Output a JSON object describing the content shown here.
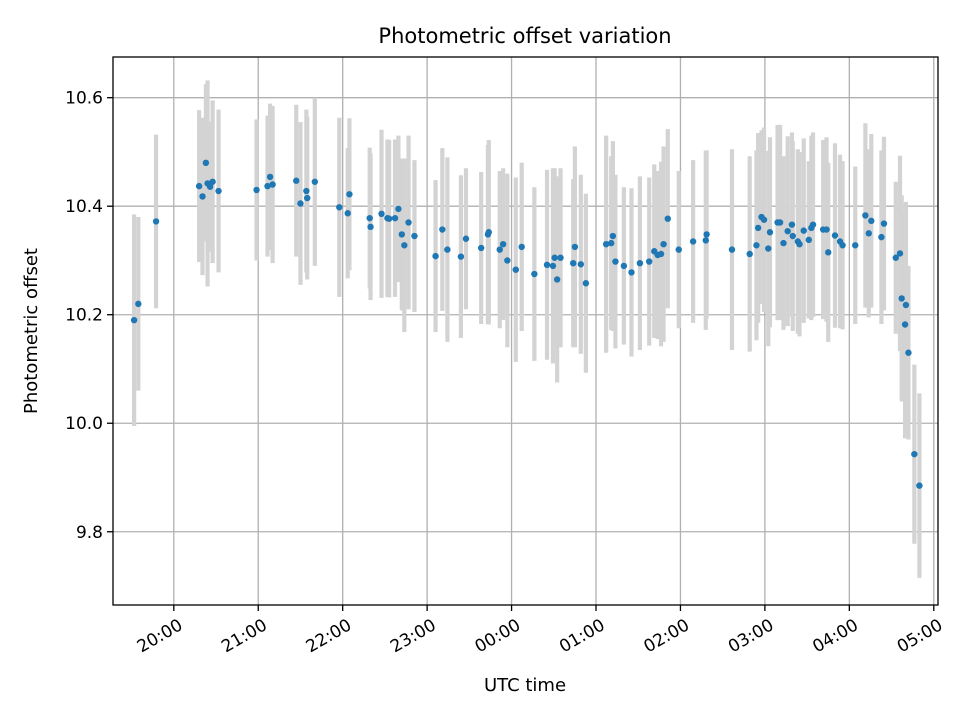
{
  "chart_data": {
    "type": "scatter",
    "title": "Photometric offset variation",
    "xlabel": "UTC time",
    "ylabel": "Photometric offset",
    "xlim": [
      -0.72,
      9.05
    ],
    "ylim": [
      9.665,
      10.675
    ],
    "grid": true,
    "x_ticks": [
      {
        "value": 0,
        "label": "20:00"
      },
      {
        "value": 1,
        "label": "21:00"
      },
      {
        "value": 2,
        "label": "22:00"
      },
      {
        "value": 3,
        "label": "23:00"
      },
      {
        "value": 4,
        "label": "00:00"
      },
      {
        "value": 5,
        "label": "01:00"
      },
      {
        "value": 6,
        "label": "02:00"
      },
      {
        "value": 7,
        "label": "03:00"
      },
      {
        "value": 8,
        "label": "04:00"
      },
      {
        "value": 9,
        "label": "05:00"
      }
    ],
    "y_ticks": [
      {
        "value": 9.8,
        "label": "9.8"
      },
      {
        "value": 10.0,
        "label": "10.0"
      },
      {
        "value": 10.2,
        "label": "10.2"
      },
      {
        "value": 10.4,
        "label": "10.4"
      },
      {
        "value": 10.6,
        "label": "10.6"
      }
    ],
    "series": [
      {
        "name": "photometric offset",
        "x_unit": "hours after 20:00 UTC",
        "color": "#1f77b4",
        "errorbar_color": "#d3d3d3",
        "points": [
          [
            -0.47,
            10.19,
            0.195
          ],
          [
            -0.42,
            10.22,
            0.16
          ],
          [
            -0.21,
            10.372,
            0.16
          ],
          [
            0.3,
            10.437,
            0.14
          ],
          [
            0.34,
            10.418,
            0.145
          ],
          [
            0.38,
            10.48,
            0.145
          ],
          [
            0.4,
            10.442,
            0.19
          ],
          [
            0.43,
            10.436,
            0.12
          ],
          [
            0.46,
            10.445,
            0.15
          ],
          [
            0.53,
            10.428,
            0.15
          ],
          [
            0.98,
            10.43,
            0.13
          ],
          [
            1.11,
            10.437,
            0.13
          ],
          [
            1.14,
            10.454,
            0.135
          ],
          [
            1.17,
            10.44,
            0.145
          ],
          [
            1.45,
            10.447,
            0.14
          ],
          [
            1.5,
            10.405,
            0.15
          ],
          [
            1.57,
            10.428,
            0.15
          ],
          [
            1.58,
            10.415,
            0.15
          ],
          [
            1.67,
            10.445,
            0.155
          ],
          [
            1.96,
            10.398,
            0.165
          ],
          [
            2.06,
            10.387,
            0.12
          ],
          [
            2.08,
            10.422,
            0.14
          ],
          [
            2.32,
            10.378,
            0.13
          ],
          [
            2.33,
            10.362,
            0.135
          ],
          [
            2.46,
            10.386,
            0.155
          ],
          [
            2.53,
            10.378,
            0.145
          ],
          [
            2.55,
            10.377,
            0.145
          ],
          [
            2.62,
            10.378,
            0.145
          ],
          [
            2.66,
            10.395,
            0.135
          ],
          [
            2.7,
            10.348,
            0.14
          ],
          [
            2.73,
            10.328,
            0.16
          ],
          [
            2.78,
            10.37,
            0.16
          ],
          [
            2.85,
            10.345,
            0.14
          ],
          [
            3.1,
            10.308,
            0.14
          ],
          [
            3.18,
            10.357,
            0.15
          ],
          [
            3.24,
            10.32,
            0.17
          ],
          [
            3.4,
            10.307,
            0.15
          ],
          [
            3.46,
            10.34,
            0.13
          ],
          [
            3.64,
            10.323,
            0.14
          ],
          [
            3.72,
            10.348,
            0.165
          ],
          [
            3.73,
            10.352,
            0.17
          ],
          [
            3.86,
            10.32,
            0.145
          ],
          [
            3.9,
            10.33,
            0.14
          ],
          [
            3.95,
            10.3,
            0.16
          ],
          [
            4.05,
            10.283,
            0.17
          ],
          [
            4.12,
            10.325,
            0.155
          ],
          [
            4.27,
            10.275,
            0.16
          ],
          [
            4.42,
            10.292,
            0.175
          ],
          [
            4.49,
            10.29,
            0.18
          ],
          [
            4.51,
            10.305,
            0.165
          ],
          [
            4.54,
            10.265,
            0.19
          ],
          [
            4.58,
            10.305,
            0.165
          ],
          [
            4.73,
            10.295,
            0.155
          ],
          [
            4.75,
            10.325,
            0.185
          ],
          [
            4.82,
            10.293,
            0.165
          ],
          [
            4.88,
            10.258,
            0.165
          ],
          [
            5.12,
            10.33,
            0.2
          ],
          [
            5.18,
            10.332,
            0.16
          ],
          [
            5.2,
            10.345,
            0.175
          ],
          [
            5.23,
            10.298,
            0.16
          ],
          [
            5.33,
            10.29,
            0.145
          ],
          [
            5.42,
            10.278,
            0.155
          ],
          [
            5.52,
            10.295,
            0.16
          ],
          [
            5.63,
            10.298,
            0.155
          ],
          [
            5.69,
            10.317,
            0.16
          ],
          [
            5.73,
            10.31,
            0.155
          ],
          [
            5.77,
            10.312,
            0.17
          ],
          [
            5.8,
            10.33,
            0.18
          ],
          [
            5.85,
            10.377,
            0.165
          ],
          [
            5.98,
            10.32,
            0.145
          ],
          [
            6.15,
            10.335,
            0.15
          ],
          [
            6.3,
            10.337,
            0.165
          ],
          [
            6.31,
            10.348,
            0.155
          ],
          [
            6.61,
            10.32,
            0.185
          ],
          [
            6.82,
            10.312,
            0.18
          ],
          [
            6.9,
            10.328,
            0.175
          ],
          [
            6.92,
            10.36,
            0.175
          ],
          [
            6.96,
            10.38,
            0.16
          ],
          [
            6.99,
            10.375,
            0.17
          ],
          [
            7.04,
            10.322,
            0.18
          ],
          [
            7.06,
            10.352,
            0.175
          ],
          [
            7.15,
            10.37,
            0.18
          ],
          [
            7.18,
            10.37,
            0.18
          ],
          [
            7.22,
            10.332,
            0.16
          ],
          [
            7.27,
            10.354,
            0.175
          ],
          [
            7.32,
            10.366,
            0.17
          ],
          [
            7.33,
            10.345,
            0.175
          ],
          [
            7.39,
            10.335,
            0.17
          ],
          [
            7.41,
            10.33,
            0.17
          ],
          [
            7.46,
            10.355,
            0.17
          ],
          [
            7.52,
            10.338,
            0.145
          ],
          [
            7.55,
            10.36,
            0.17
          ],
          [
            7.57,
            10.366,
            0.17
          ],
          [
            7.69,
            10.357,
            0.165
          ],
          [
            7.75,
            10.315,
            0.165
          ],
          [
            7.73,
            10.357,
            0.17
          ],
          [
            7.83,
            10.346,
            0.17
          ],
          [
            7.89,
            10.335,
            0.16
          ],
          [
            7.92,
            10.328,
            0.155
          ],
          [
            8.07,
            10.328,
            0.145
          ],
          [
            8.19,
            10.383,
            0.17
          ],
          [
            8.23,
            10.35,
            0.155
          ],
          [
            8.26,
            10.373,
            0.16
          ],
          [
            8.38,
            10.343,
            0.16
          ],
          [
            8.41,
            10.368,
            0.16
          ],
          [
            8.55,
            10.305,
            0.14
          ],
          [
            8.6,
            10.313,
            0.18
          ],
          [
            8.62,
            10.23,
            0.19
          ],
          [
            8.67,
            10.218,
            0.19
          ],
          [
            8.66,
            10.182,
            0.21
          ],
          [
            8.7,
            10.13,
            0.16
          ],
          [
            8.77,
            9.943,
            0.165
          ],
          [
            8.83,
            9.885,
            0.17
          ]
        ]
      }
    ]
  }
}
